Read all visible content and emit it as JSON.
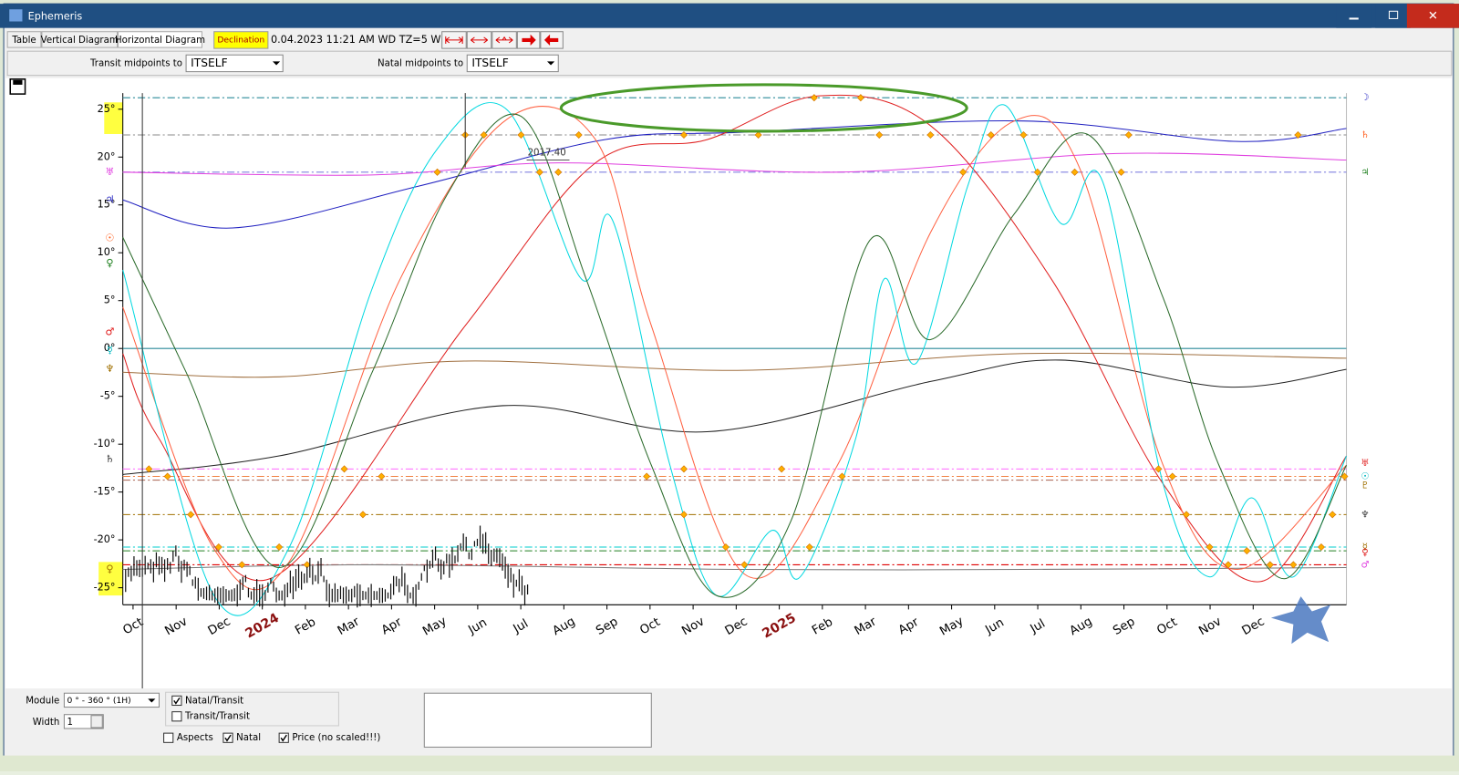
{
  "window": {
    "title": "Ephemeris"
  },
  "tabs": [
    "Table",
    "Vertical Diagram",
    "Horizontal Diagram"
  ],
  "toolbar": {
    "declination": "Declination",
    "datetime": "0.04.2023  11:21 AM WD",
    "timezone": "TZ=5 W"
  },
  "midpoints": {
    "transit_label": "Transit midpoints to",
    "transit_value": "ITSELF",
    "natal_label": "Natal midpoints to",
    "natal_value": "ITSELF"
  },
  "chart_data": {
    "type": "line",
    "yticks": [
      {
        "value": 25,
        "label": "25°"
      },
      {
        "value": 20,
        "label": "20°"
      },
      {
        "value": 15,
        "label": "15°"
      },
      {
        "value": 10,
        "label": "10°"
      },
      {
        "value": 5,
        "label": "5°"
      },
      {
        "value": 0,
        "label": "0°"
      },
      {
        "value": -5,
        "label": "-5°"
      },
      {
        "value": -10,
        "label": "-10°"
      },
      {
        "value": -15,
        "label": "-15°"
      },
      {
        "value": -20,
        "label": "-20°"
      },
      {
        "value": -25,
        "label": "-25°"
      }
    ],
    "ylim": [
      26.2,
      -26.1
    ],
    "categories": [
      "Oct",
      "Nov",
      "Dec",
      "2024",
      "Feb",
      "Mar",
      "Apr",
      "May",
      "Jun",
      "Jul",
      "Aug",
      "Sep",
      "Oct",
      "Nov",
      "Dec",
      "2025",
      "Feb",
      "Mar",
      "Apr",
      "May",
      "Jun",
      "Jul",
      "Aug",
      "Sep",
      "Oct",
      "Nov",
      "Dec"
    ],
    "price_label": "2017.40",
    "left_glyphs": [
      "♅",
      "♃",
      "☉",
      "♀",
      "♂",
      "☿",
      "♆",
      "♄",
      "♀"
    ],
    "right_glyphs": [
      "☽",
      "♄",
      "♃",
      "♅",
      "☉",
      "♇",
      "♆",
      "☿",
      "♀",
      "♂"
    ]
  },
  "bottom": {
    "module_label": "Module",
    "module_value": "0 ° - 360 ° (1H)",
    "width_label": "Width",
    "width_value": "1",
    "checks": [
      {
        "label": "Natal/Transit",
        "checked": true
      },
      {
        "label": "Transit/Transit",
        "checked": false
      },
      {
        "label": "Aspects",
        "checked": false
      },
      {
        "label": "Natal",
        "checked": true
      },
      {
        "label": "Price (no scaled!!!)",
        "checked": true
      }
    ]
  }
}
